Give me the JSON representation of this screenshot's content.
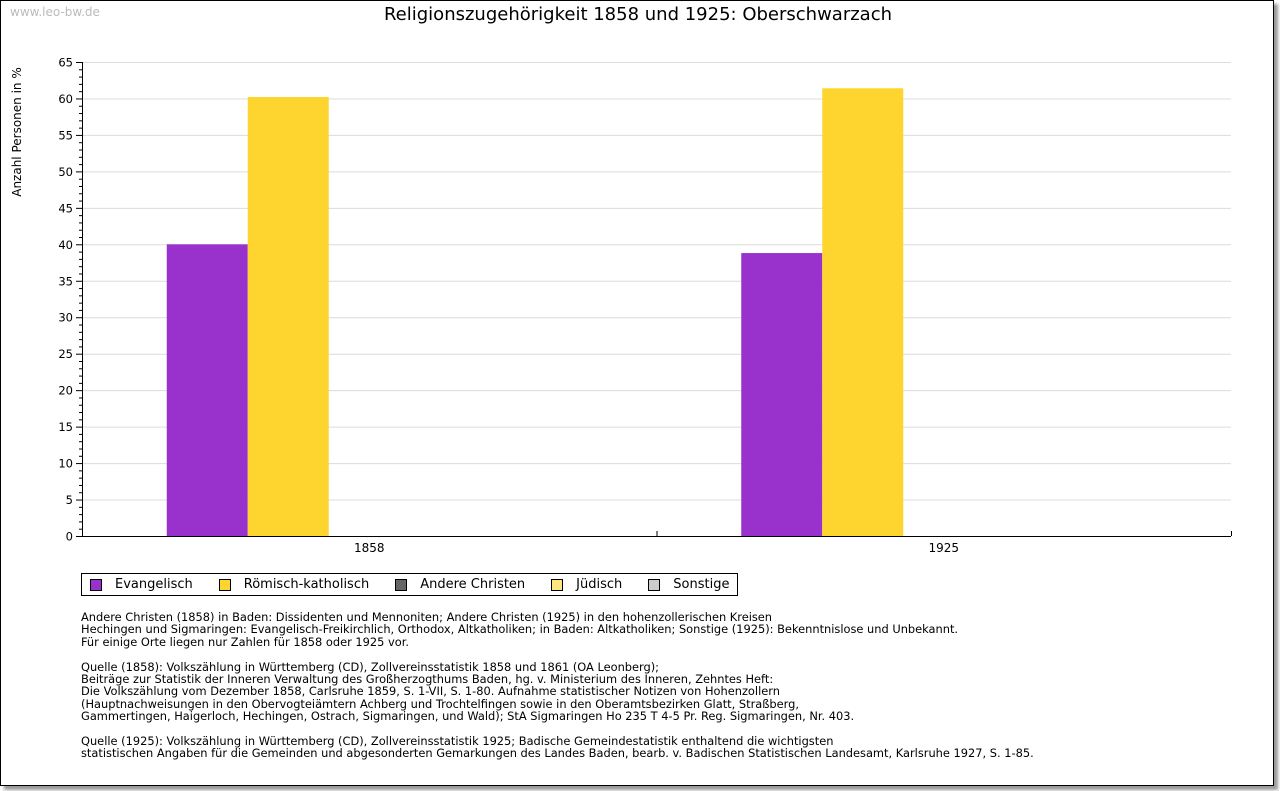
{
  "watermark": "www.leo-bw.de",
  "chart_data": {
    "type": "bar",
    "title": "Religionszugehörigkeit 1858 und 1925: Oberschwarzach",
    "xlabel": "",
    "ylabel": "Anzahl Personen in %",
    "ylim": [
      0,
      65
    ],
    "yticks": [
      "0",
      "5",
      "10",
      "15",
      "20",
      "25",
      "30",
      "35",
      "40",
      "45",
      "50",
      "55",
      "60",
      "65"
    ],
    "grid": true,
    "legend_placement": "bottom-left",
    "categories": [
      "1858",
      "1925"
    ],
    "series": [
      {
        "name": "Evangelisch",
        "color": "#9932cc",
        "values": [
          40.0,
          38.8
        ]
      },
      {
        "name": "Römisch-katholisch",
        "color": "#fdd52e",
        "values": [
          60.2,
          61.4
        ]
      },
      {
        "name": "Andere Christen",
        "color": "#666666",
        "values": [
          0,
          0
        ]
      },
      {
        "name": "Jüdisch",
        "color": "#fde680",
        "values": [
          0,
          0
        ]
      },
      {
        "name": "Sonstige",
        "color": "#cccccc",
        "values": [
          0,
          0
        ]
      }
    ]
  },
  "notes": [
    "Andere Christen (1858) in Baden: Dissidenten und Mennoniten; Andere Christen (1925) in den hohenzollerischen Kreisen\nHechingen und Sigmaringen: Evangelisch-Freikirchlich, Orthodox, Altkatholiken; in Baden: Altkatholiken; Sonstige (1925): Bekenntnislose und Unbekannt.\nFür einige Orte liegen nur Zahlen für 1858 oder 1925 vor.",
    "Quelle (1858): Volkszählung in Württemberg (CD), Zollvereinsstatistik 1858 und 1861 (OA Leonberg);\nBeiträge zur Statistik der Inneren Verwaltung des Großherzogthums Baden, hg. v. Ministerium des Inneren, Zehntes Heft:\nDie Volkszählung vom Dezember 1858, Carlsruhe 1859, S. 1-VII, S. 1-80. Aufnahme statistischer Notizen von Hohenzollern\n(Hauptnachweisungen in den Obervogteiämtern Achberg und Trochtelfingen sowie in den Oberamtsbezirken Glatt, Straßberg,\nGammertingen, Haigerloch, Hechingen, Ostrach, Sigmaringen, und Wald); StA Sigmaringen Ho 235 T 4-5 Pr. Reg. Sigmaringen, Nr. 403.",
    "Quelle (1925): Volkszählung in Württemberg (CD), Zollvereinsstatistik 1925; Badische Gemeindestatistik enthaltend die wichtigsten\nstatistischen Angaben für die Gemeinden und abgesonderten Gemarkungen des Landes Baden, bearb. v. Badischen Statistischen Landesamt, Karlsruhe 1927, S. 1-85."
  ]
}
